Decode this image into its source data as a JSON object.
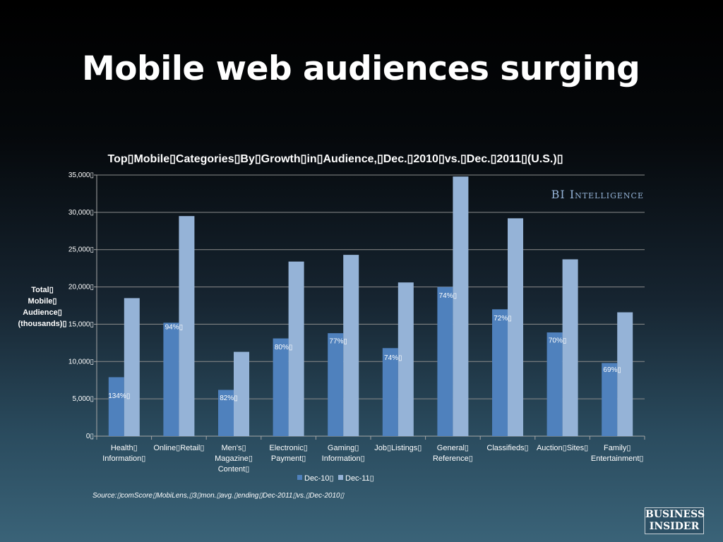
{
  "slide": {
    "title": "Mobile web audiences surging",
    "source": "Source:▯comScore▯MobiLens,▯3▯mon.▯avg.▯ending▯Dec-2011▯vs.▯Dec-2010▯",
    "logo_line1": "BUSINESS",
    "logo_line2": "INSIDER"
  },
  "colors": {
    "dec10": "#4f81bd",
    "dec11": "#95b3d7",
    "gridline": "#8c8c8c",
    "text": "#ffffff"
  },
  "chart_data": {
    "type": "bar",
    "title": "Top▯Mobile▯Categories▯By▯Growth▯in▯Audience,▯Dec.▯2010▯vs.▯Dec.▯2011▯(U.S.)▯",
    "watermark": "BI Intelligence",
    "ylabel": "Total▯\nMobile▯\nAudience▯\n(thousands)▯",
    "ylim": [
      0,
      35000
    ],
    "yticks": [
      0,
      5000,
      10000,
      15000,
      20000,
      25000,
      30000,
      35000
    ],
    "ytick_labels": [
      "0▯",
      "5,000▯",
      "10,000▯",
      "15,000▯",
      "20,000▯",
      "25,000▯",
      "30,000▯",
      "35,000▯"
    ],
    "grid": true,
    "legend": "bottom",
    "categories": [
      "Health▯\nInformation▯",
      "Online▯Retail▯",
      "Men's▯\nMagazine▯\nContent▯",
      "Electronic▯\nPayment▯",
      "Gaming▯\nInformation▯",
      "Job▯Listings▯",
      "General▯\nReference▯",
      "Classifieds▯",
      "Auction▯Sites▯",
      "Family▯\nEntertainment▯"
    ],
    "series": [
      {
        "name": "Dec-10▯",
        "values": [
          7900,
          15200,
          6200,
          13100,
          13800,
          11800,
          20000,
          17000,
          13900,
          9800
        ]
      },
      {
        "name": "Dec-11▯",
        "values": [
          18500,
          29500,
          11300,
          23400,
          24300,
          20600,
          34800,
          29200,
          23700,
          16600
        ]
      }
    ],
    "growth_labels": [
      "134%▯",
      "94%▯",
      "82%▯",
      "80%▯",
      "77%▯",
      "74%▯",
      "74%▯",
      "72%▯",
      "70%▯",
      "69%▯"
    ],
    "growth_label_values": [
      5500,
      14700,
      5200,
      12000,
      12800,
      10600,
      18900,
      15900,
      12900,
      9000
    ]
  }
}
